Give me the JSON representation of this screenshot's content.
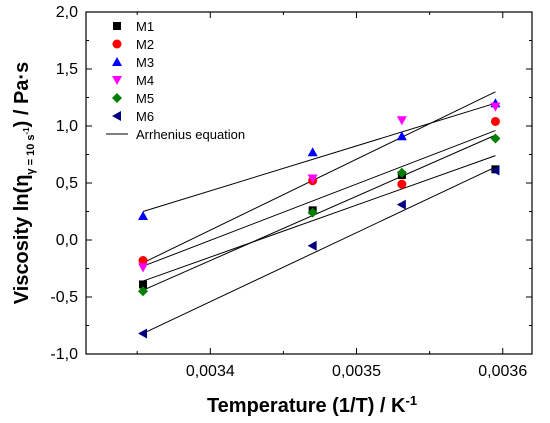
{
  "chart_data": {
    "type": "scatter",
    "xlabel": "Temperature (1/T) / K⁻¹",
    "ylabel": "Viscosity ln(ηγ̇=10 s⁻¹) / Pa·s",
    "xlim": [
      0.003315,
      0.00362
    ],
    "ylim": [
      -1.0,
      2.0
    ],
    "x_ticks": [
      0.0034,
      0.0035,
      0.0036
    ],
    "x_tick_labels": [
      "0,0034",
      "0,0035",
      "0,0036"
    ],
    "y_ticks": [
      -1.0,
      -0.5,
      0.0,
      0.5,
      1.0,
      1.5,
      2.0
    ],
    "y_tick_labels": [
      "-1,0",
      "-0,5",
      "0,0",
      "0,5",
      "1,0",
      "1,5",
      "2,0"
    ],
    "x": [
      0.003354,
      0.00347,
      0.003531,
      0.003595
    ],
    "series": [
      {
        "name": "M1",
        "values": [
          -0.39,
          0.26,
          0.57,
          0.62
        ],
        "color": "#000000",
        "marker": "square",
        "fit": [
          [
            0.003354,
            -0.36
          ],
          [
            0.003595,
            0.74
          ]
        ]
      },
      {
        "name": "M2",
        "values": [
          -0.18,
          0.52,
          0.49,
          1.04
        ],
        "color": "#ff0000",
        "marker": "circle",
        "fit": [
          [
            0.003354,
            -0.23
          ],
          [
            0.003595,
            0.96
          ]
        ]
      },
      {
        "name": "M3",
        "values": [
          0.21,
          0.77,
          0.91,
          1.2
        ],
        "color": "#0000ff",
        "marker": "triangle-up",
        "fit": [
          [
            0.003354,
            0.25
          ],
          [
            0.003595,
            1.2
          ]
        ]
      },
      {
        "name": "M4",
        "values": [
          -0.24,
          0.54,
          1.05,
          1.17
        ],
        "color": "#ff00ff",
        "marker": "triangle-down",
        "fit": [
          [
            0.003354,
            -0.2
          ],
          [
            0.003595,
            1.3
          ]
        ]
      },
      {
        "name": "M5",
        "values": [
          -0.45,
          0.24,
          0.59,
          0.89
        ],
        "color": "#008000",
        "marker": "diamond",
        "fit": [
          [
            0.003354,
            -0.44
          ],
          [
            0.003595,
            0.92
          ]
        ]
      },
      {
        "name": "M6",
        "values": [
          -0.82,
          -0.05,
          0.31,
          0.61
        ],
        "color": "#000080",
        "marker": "triangle-left",
        "fit": [
          [
            0.003354,
            -0.82
          ],
          [
            0.003595,
            0.64
          ]
        ]
      }
    ],
    "legend": {
      "placement": "top-left",
      "line_label": "Arrhenius equation"
    }
  }
}
